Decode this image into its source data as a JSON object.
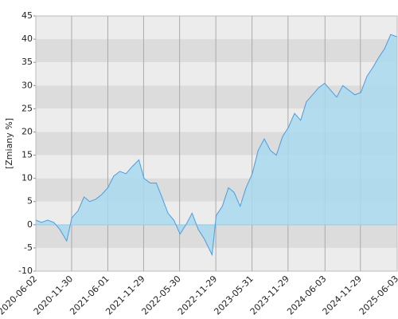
{
  "chart_data": {
    "type": "area",
    "y_label": "[Zmiany %]",
    "x": [
      "2020-06-02",
      "2020-07-01",
      "2020-08-01",
      "2020-09-01",
      "2020-10-01",
      "2020-11-05",
      "2020-12-01",
      "2021-01-01",
      "2021-02-01",
      "2021-03-01",
      "2021-04-01",
      "2021-05-01",
      "2021-06-01",
      "2021-07-01",
      "2021-08-01",
      "2021-09-01",
      "2021-10-01",
      "2021-11-05",
      "2021-12-01",
      "2022-01-01",
      "2022-02-01",
      "2022-03-01",
      "2022-04-01",
      "2022-05-01",
      "2022-06-01",
      "2022-07-01",
      "2022-08-01",
      "2022-09-01",
      "2022-10-01",
      "2022-11-10",
      "2022-12-01",
      "2023-01-01",
      "2023-02-01",
      "2023-03-01",
      "2023-04-01",
      "2023-05-01",
      "2023-06-01",
      "2023-07-01",
      "2023-08-01",
      "2023-09-01",
      "2023-10-01",
      "2023-11-01",
      "2023-12-01",
      "2024-01-01",
      "2024-02-01",
      "2024-03-01",
      "2024-04-01",
      "2024-05-01",
      "2024-06-01",
      "2024-07-01",
      "2024-08-01",
      "2024-09-01",
      "2024-10-01",
      "2024-11-01",
      "2024-12-01",
      "2025-01-01",
      "2025-02-01",
      "2025-03-01",
      "2025-04-01",
      "2025-05-01",
      "2025-06-03"
    ],
    "series": [
      {
        "name": "Zmiany",
        "color": "#4a9de0",
        "fill": "#a9d9ee",
        "values": [
          1,
          0.5,
          1,
          0.5,
          -1,
          -3.5,
          1.5,
          3,
          6,
          5,
          5.5,
          6.5,
          8,
          10.5,
          11.5,
          11,
          12.5,
          14,
          10,
          9,
          9,
          6,
          2.5,
          1,
          -2,
          0,
          2.5,
          -1,
          -3,
          -6.5,
          2,
          4,
          8,
          7,
          4,
          8,
          11,
          16,
          18.5,
          16,
          15,
          19,
          21,
          24,
          22.5,
          26.5,
          28,
          29.5,
          30.5,
          29,
          27.5,
          30,
          29,
          28,
          28.5,
          32,
          34,
          36,
          38,
          41,
          40.5
        ]
      }
    ],
    "xlim": [
      "2020-06-02",
      "2025-06-03"
    ],
    "xticks": [
      "2020-06-02",
      "2020-11-30",
      "2021-06-01",
      "2021-11-29",
      "2022-05-30",
      "2022-11-29",
      "2023-05-31",
      "2023-11-29",
      "2024-06-03",
      "2024-11-29",
      "2025-06-03"
    ],
    "ylim": [
      -10,
      45
    ],
    "yticks": [
      -10,
      -5,
      0,
      5,
      10,
      15,
      20,
      25,
      30,
      35,
      40,
      45
    ],
    "grid": true,
    "band_colors": [
      "#ececec",
      "#dcdcdc"
    ],
    "zero_line_color": "#8fd0e6"
  }
}
